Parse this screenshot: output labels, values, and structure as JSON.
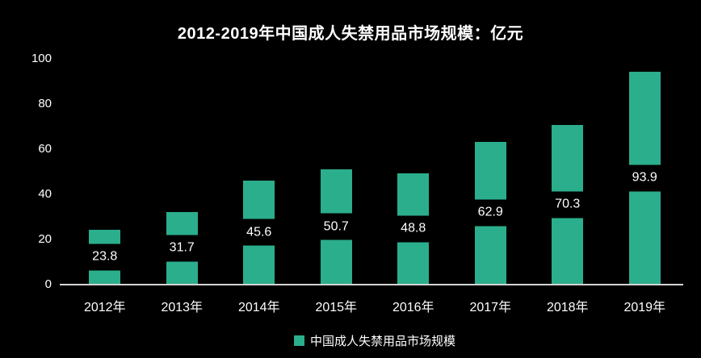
{
  "colors": {
    "background": "#000000",
    "bar": "#2BAE8C",
    "text": "#FFFFFF",
    "axis_line": "#D4D4D4",
    "label_gap_background": "#000000"
  },
  "legend": {
    "label": "中国成人失禁用品市场规模",
    "swatch_color": "#2BAE8C",
    "position": "bottom"
  },
  "chart_data": {
    "type": "bar",
    "title": "2012-2019年中国成人失禁用品市场规模：亿元",
    "unit": "亿元",
    "categories": [
      "2012年",
      "2013年",
      "2014年",
      "2015年",
      "2016年",
      "2017年",
      "2018年",
      "2019年"
    ],
    "values": [
      23.8,
      31.7,
      45.6,
      50.7,
      48.8,
      62.9,
      70.3,
      93.9
    ],
    "data_labels": [
      "23.8",
      "31.7",
      "45.6",
      "50.7",
      "48.8",
      "62.9",
      "70.3",
      "93.9"
    ],
    "xlabel": "",
    "ylabel": "",
    "ylim": [
      0,
      100
    ],
    "yticks": [
      0,
      20,
      40,
      60,
      80,
      100
    ],
    "grid": false,
    "legend_entries": [
      "中国成人失禁用品市场规模"
    ],
    "legend_position": "bottom",
    "theme": "dark"
  }
}
